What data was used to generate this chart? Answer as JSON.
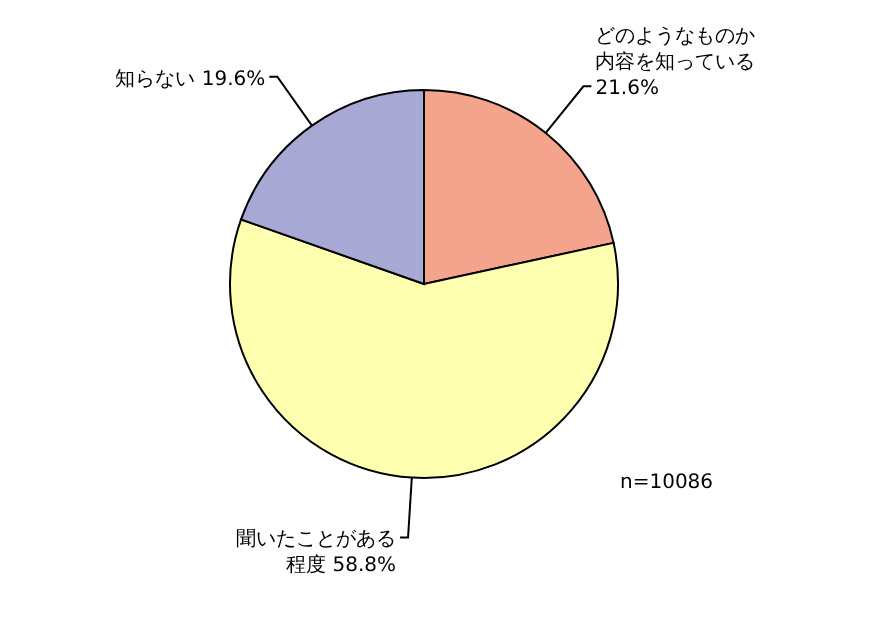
{
  "chart_data": {
    "type": "pie",
    "categories": [
      "どのようなものか内容を知っている",
      "聞いたことがある程度",
      "知らない"
    ],
    "values": [
      21.6,
      58.8,
      19.6
    ],
    "colors": [
      "#f4a48c",
      "#ffffb0",
      "#a8a8d4"
    ],
    "value_labels": [
      "21.6%",
      "58.8%",
      "19.6%"
    ],
    "annotations": [
      {
        "text": "n=10086"
      }
    ]
  }
}
